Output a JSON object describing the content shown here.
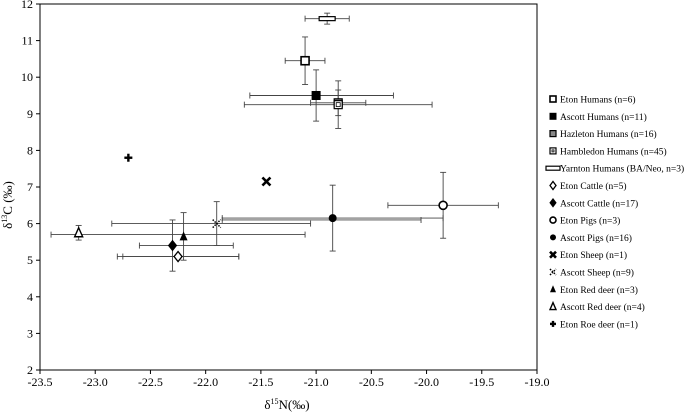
{
  "chart_data": {
    "type": "scatter",
    "title": "",
    "xlabel_main": "δ",
    "xlabel_sup": "15",
    "xlabel_rest": "N(‰)",
    "ylabel_main": "δ",
    "ylabel_sup": "13",
    "ylabel_rest": "C (‰)",
    "xlim": [
      -23.5,
      -19.0
    ],
    "ylim": [
      2,
      12
    ],
    "xticks": [
      "-23.5",
      "-23.0",
      "-22.5",
      "-22.0",
      "-21.5",
      "-21.0",
      "-20.5",
      "-20.0",
      "-19.5",
      "-19.0"
    ],
    "yticks": [
      "2",
      "3",
      "4",
      "5",
      "6",
      "7",
      "8",
      "9",
      "10",
      "11",
      "12"
    ],
    "grid": false,
    "legend_position": "right",
    "series": [
      {
        "name": "Eton Humans (n=6)",
        "marker": "square-open",
        "x": -21.1,
        "y": 10.45,
        "xerr": 0.18,
        "yerr": 0.65
      },
      {
        "name": "Ascott Humans (n=11)",
        "marker": "square-filled",
        "x": -21.0,
        "y": 9.5,
        "xerr": 0.0,
        "yerr": 0.7
      },
      {
        "name": "Hazleton Humans (n=16)",
        "marker": "square-gray",
        "x": -20.8,
        "y": 9.3,
        "xerr": 0.25,
        "yerr": 0.35
      },
      {
        "name": "Hambledon Humans (n=45)",
        "marker": "square-inner",
        "x": -20.8,
        "y": 9.25,
        "xerr": 0.85,
        "yerr": 0.65
      },
      {
        "name": "Yarnton Humans (BA/Neo, n=3)",
        "marker": "dash",
        "x": -20.9,
        "y": 11.6,
        "xerr": 0.2,
        "yerr": 0.15
      },
      {
        "name": "Eton Cattle (n=5)",
        "marker": "diamond-open",
        "x": -22.25,
        "y": 5.1,
        "xerr": 0.55,
        "yerr": 0.0
      },
      {
        "name": "Ascott Cattle (n=17)",
        "marker": "diamond-filled",
        "x": -22.3,
        "y": 5.4,
        "xerr": 0.0,
        "yerr": 0.7
      },
      {
        "name": "Eton Pigs (n=3)",
        "marker": "circle-open",
        "x": -19.85,
        "y": 6.5,
        "xerr": 0.5,
        "yerr": 0.9
      },
      {
        "name": "Ascott Pigs (n=16)",
        "marker": "circle-filled",
        "x": -20.85,
        "y": 6.15,
        "xerr": 1.0,
        "yerr": 0.9
      },
      {
        "name": "Eton Sheep (n=1)",
        "marker": "x",
        "x": -21.45,
        "y": 7.15,
        "xerr": 0,
        "yerr": 0
      },
      {
        "name": "Ascott Sheep (n=9)",
        "marker": "dotted-cross",
        "x": -21.9,
        "y": 6.0,
        "xerr": 0.0,
        "yerr": 0.6
      },
      {
        "name": "Eton Red deer (n=3)",
        "marker": "triangle-filled",
        "x": -22.2,
        "y": 5.65,
        "xerr": 0.0,
        "yerr": 0.65
      },
      {
        "name": "Ascott Red deer (n=4)",
        "marker": "triangle-open",
        "x": -23.15,
        "y": 5.75,
        "xerr": 0.0,
        "yerr": 0.2
      },
      {
        "name": "Eton Roe deer (n=1)",
        "marker": "plus",
        "x": -22.7,
        "y": 7.8,
        "xerr": 0,
        "yerr": 0
      }
    ],
    "extra_error_bars": [
      {
        "note": "wide horizontal bars without central marker",
        "y": 6.0,
        "xmin": -22.85,
        "xmax": -21.05
      },
      {
        "y": 5.7,
        "xmin": -23.4,
        "xmax": -21.1
      },
      {
        "y": 5.4,
        "xmin": -22.6,
        "xmax": -21.75
      },
      {
        "y": 5.1,
        "xmin": -22.75,
        "xmax": -21.7
      },
      {
        "y": 6.1,
        "xmin": -21.85,
        "xmax": -20.05
      },
      {
        "y": 9.5,
        "xmin": -21.6,
        "xmax": -20.3
      }
    ]
  }
}
